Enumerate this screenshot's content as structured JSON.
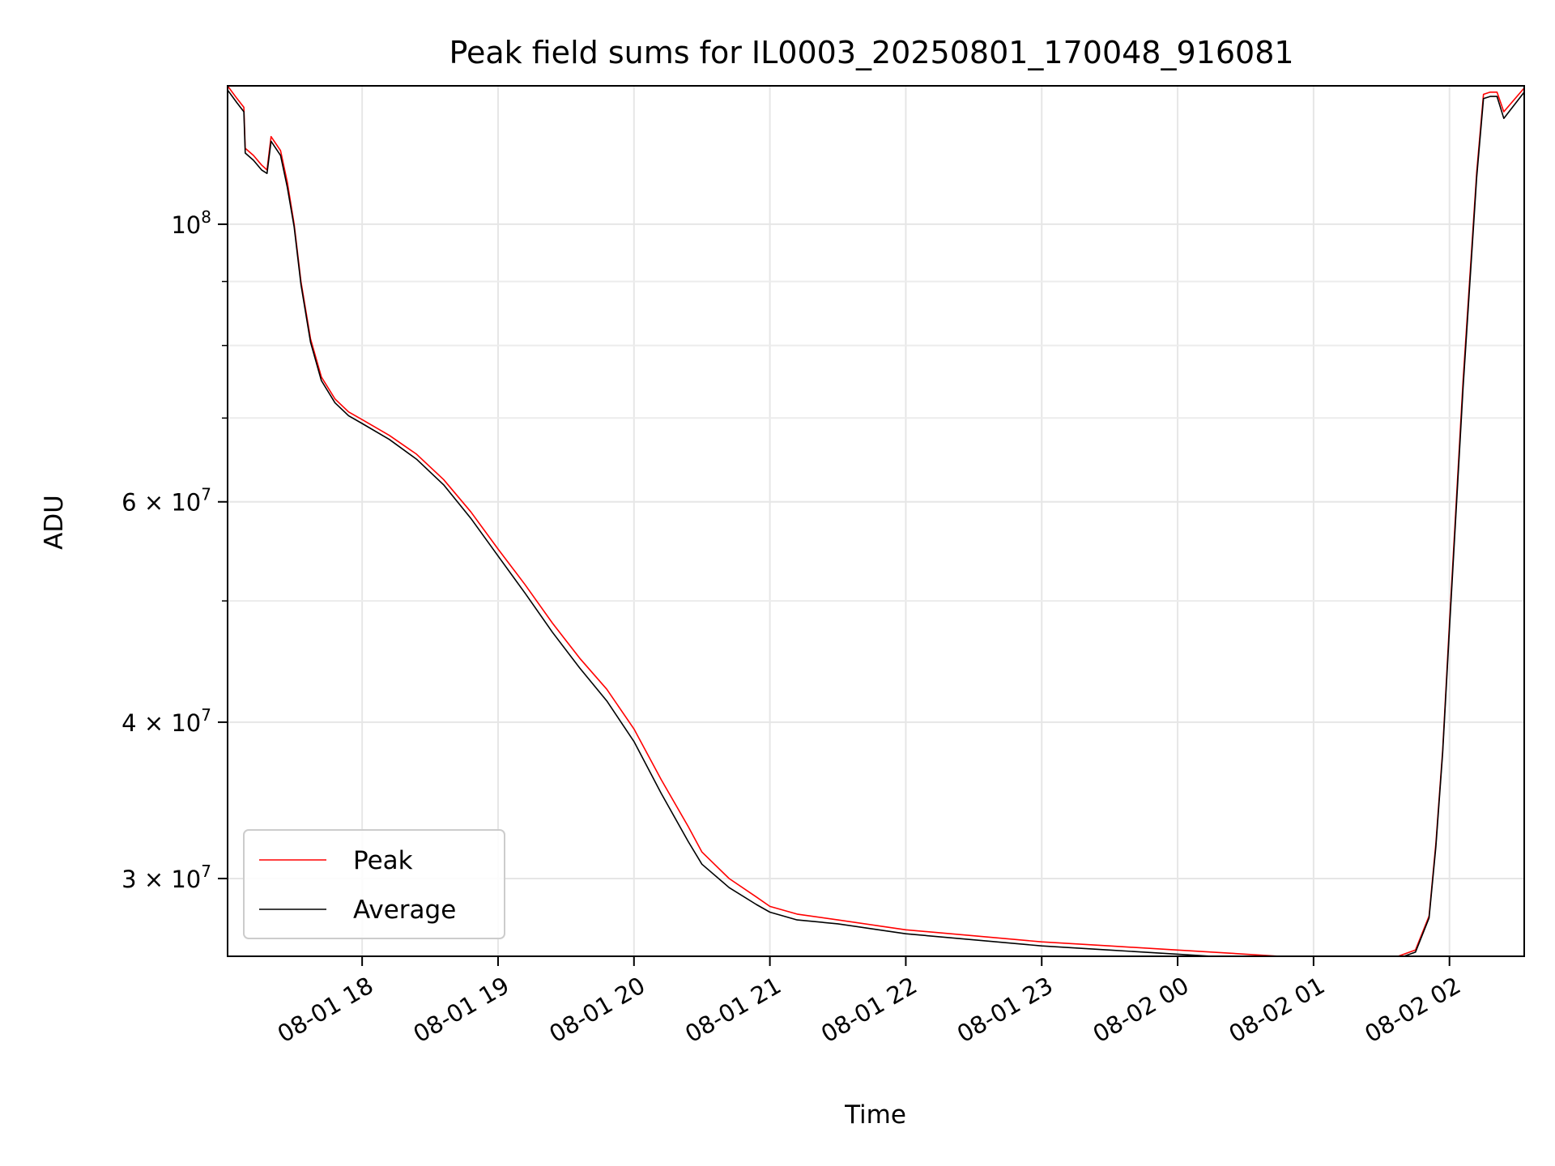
{
  "chart_data": {
    "type": "line",
    "title": "Peak field sums for IL0003_20250801_170048_916081",
    "xlabel": "Time",
    "ylabel": "ADU",
    "yscale": "log",
    "grid": true,
    "legend_position": "lower-left",
    "xlim": [
      17.01,
      26.55
    ],
    "ylim": [
      26000000,
      129000000
    ],
    "x_ticks": [
      {
        "value": 18,
        "label": "08-01 18"
      },
      {
        "value": 19,
        "label": "08-01 19"
      },
      {
        "value": 20,
        "label": "08-01 20"
      },
      {
        "value": 21,
        "label": "08-01 21"
      },
      {
        "value": 22,
        "label": "08-01 22"
      },
      {
        "value": 23,
        "label": "08-01 23"
      },
      {
        "value": 24,
        "label": "08-02 00"
      },
      {
        "value": 25,
        "label": "08-02 01"
      },
      {
        "value": 26,
        "label": "08-02 02"
      }
    ],
    "y_ticks": [
      {
        "value": 100000000,
        "base": "10",
        "exp": "8"
      },
      {
        "value": 60000000,
        "base": "6 × 10",
        "exp": "7"
      },
      {
        "value": 40000000,
        "base": "4 × 10",
        "exp": "7"
      },
      {
        "value": 30000000,
        "base": "3 × 10",
        "exp": "7"
      }
    ],
    "y_minor_ticks": [
      50000000,
      70000000,
      80000000,
      90000000
    ],
    "series": [
      {
        "name": "Peak",
        "color": "#ff0000",
        "x": [
          17.01,
          17.08,
          17.13,
          17.14,
          17.2,
          17.26,
          17.3,
          17.33,
          17.4,
          17.45,
          17.5,
          17.55,
          17.62,
          17.7,
          17.8,
          17.9,
          18.0,
          18.2,
          18.4,
          18.6,
          18.8,
          19.0,
          19.2,
          19.4,
          19.6,
          19.8,
          20.0,
          20.2,
          20.4,
          20.5,
          20.7,
          20.9,
          21.0,
          21.2,
          21.5,
          21.8,
          22.0,
          22.5,
          23.0,
          23.5,
          24.0,
          24.5,
          25.0,
          25.3,
          25.6,
          25.75,
          25.85,
          25.9,
          25.95,
          26.0,
          26.1,
          26.2,
          26.25,
          26.3,
          26.35,
          26.4,
          26.55
        ],
        "values": [
          129000000,
          126000000,
          124000000,
          115000000,
          113500000,
          111500000,
          110500000,
          117500000,
          114500000,
          108000000,
          100000000,
          90000000,
          81000000,
          75500000,
          72500000,
          70800000,
          69800000,
          67800000,
          65500000,
          62500000,
          58900000,
          55000000,
          51500000,
          48000000,
          45000000,
          42500000,
          39500000,
          36000000,
          33000000,
          31500000,
          30000000,
          29000000,
          28500000,
          28100000,
          27800000,
          27500000,
          27300000,
          27000000,
          26700000,
          26500000,
          26300000,
          26100000,
          25900000,
          25900000,
          25950000,
          26300000,
          28000000,
          32000000,
          38000000,
          48000000,
          75000000,
          110000000,
          127000000,
          127500000,
          127500000,
          123000000,
          128500000
        ]
      },
      {
        "name": "Average",
        "color": "#000000",
        "x": [
          17.01,
          17.08,
          17.13,
          17.14,
          17.2,
          17.26,
          17.3,
          17.33,
          17.4,
          17.45,
          17.5,
          17.55,
          17.62,
          17.7,
          17.8,
          17.9,
          18.0,
          18.2,
          18.4,
          18.6,
          18.8,
          19.0,
          19.2,
          19.4,
          19.6,
          19.8,
          20.0,
          20.2,
          20.4,
          20.5,
          20.7,
          20.9,
          21.0,
          21.2,
          21.5,
          21.8,
          22.0,
          22.5,
          23.0,
          23.5,
          24.0,
          24.5,
          25.0,
          25.3,
          25.6,
          25.75,
          25.85,
          25.9,
          25.95,
          26.0,
          26.1,
          26.2,
          26.25,
          26.3,
          26.35,
          26.4,
          26.55
        ],
        "values": [
          128000000,
          125000000,
          123000000,
          114000000,
          112500000,
          110500000,
          109800000,
          116500000,
          113500000,
          107000000,
          99500000,
          89500000,
          80500000,
          75000000,
          72000000,
          70300000,
          69300000,
          67300000,
          64900000,
          61900000,
          58200000,
          54300000,
          50700000,
          47200000,
          44200000,
          41600000,
          38600000,
          35100000,
          32100000,
          30800000,
          29500000,
          28600000,
          28200000,
          27800000,
          27600000,
          27300000,
          27100000,
          26800000,
          26500000,
          26300000,
          26100000,
          25900000,
          25800000,
          25800000,
          25850000,
          26200000,
          27900000,
          31800000,
          37800000,
          47500000,
          74000000,
          109000000,
          126000000,
          126500000,
          126500000,
          121500000,
          127500000
        ]
      }
    ]
  }
}
